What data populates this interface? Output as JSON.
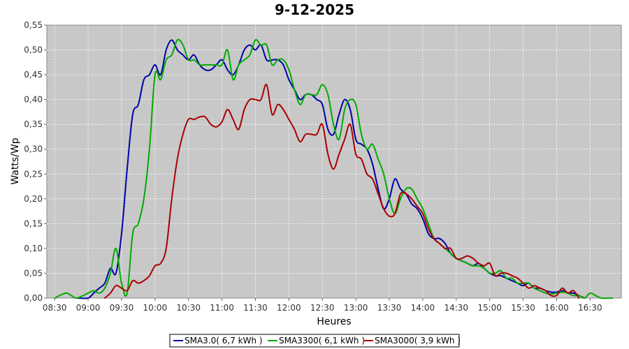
{
  "chart_data": {
    "type": "line",
    "title": "9-12-2025",
    "xlabel": "Heures",
    "ylabel": "Watts/Wp",
    "xlim": [
      "08:23",
      "16:58"
    ],
    "ylim": [
      0,
      0.55
    ],
    "x_ticks": [
      "08:30",
      "09:00",
      "09:30",
      "10:00",
      "10:30",
      "11:00",
      "11:30",
      "12:00",
      "12:30",
      "13:00",
      "13:30",
      "14:00",
      "14:30",
      "15:00",
      "15:30",
      "16:00",
      "16:30"
    ],
    "y_ticks": [
      "0,00",
      "0,05",
      "0,10",
      "0,15",
      "0,20",
      "0,25",
      "0,30",
      "0,35",
      "0,40",
      "0,45",
      "0,50",
      "0,55"
    ],
    "grid": true,
    "legend_position": "bottom",
    "series": [
      {
        "name": "SMA3.0( 6,7 kWh )",
        "color": "#0000aa",
        "points": [
          [
            "08:50",
            0.0
          ],
          [
            "09:00",
            0.0
          ],
          [
            "09:05",
            0.01
          ],
          [
            "09:10",
            0.02
          ],
          [
            "09:15",
            0.03
          ],
          [
            "09:20",
            0.06
          ],
          [
            "09:25",
            0.05
          ],
          [
            "09:30",
            0.13
          ],
          [
            "09:35",
            0.26
          ],
          [
            "09:40",
            0.37
          ],
          [
            "09:45",
            0.39
          ],
          [
            "09:50",
            0.44
          ],
          [
            "09:55",
            0.45
          ],
          [
            "10:00",
            0.47
          ],
          [
            "10:05",
            0.45
          ],
          [
            "10:10",
            0.5
          ],
          [
            "10:15",
            0.52
          ],
          [
            "10:20",
            0.5
          ],
          [
            "10:25",
            0.49
          ],
          [
            "10:30",
            0.48
          ],
          [
            "10:35",
            0.49
          ],
          [
            "10:40",
            0.47
          ],
          [
            "10:45",
            0.46
          ],
          [
            "10:50",
            0.46
          ],
          [
            "10:55",
            0.47
          ],
          [
            "11:00",
            0.48
          ],
          [
            "11:05",
            0.46
          ],
          [
            "11:10",
            0.45
          ],
          [
            "11:15",
            0.47
          ],
          [
            "11:20",
            0.5
          ],
          [
            "11:25",
            0.51
          ],
          [
            "11:30",
            0.5
          ],
          [
            "11:35",
            0.51
          ],
          [
            "11:40",
            0.48
          ],
          [
            "11:45",
            0.48
          ],
          [
            "11:50",
            0.48
          ],
          [
            "11:55",
            0.47
          ],
          [
            "12:00",
            0.44
          ],
          [
            "12:05",
            0.42
          ],
          [
            "12:10",
            0.4
          ],
          [
            "12:15",
            0.41
          ],
          [
            "12:20",
            0.41
          ],
          [
            "12:25",
            0.4
          ],
          [
            "12:30",
            0.39
          ],
          [
            "12:35",
            0.34
          ],
          [
            "12:40",
            0.33
          ],
          [
            "12:45",
            0.37
          ],
          [
            "12:50",
            0.4
          ],
          [
            "12:55",
            0.38
          ],
          [
            "13:00",
            0.32
          ],
          [
            "13:05",
            0.31
          ],
          [
            "13:10",
            0.3
          ],
          [
            "13:15",
            0.27
          ],
          [
            "13:20",
            0.22
          ],
          [
            "13:25",
            0.18
          ],
          [
            "13:30",
            0.2
          ],
          [
            "13:35",
            0.24
          ],
          [
            "13:40",
            0.22
          ],
          [
            "13:45",
            0.21
          ],
          [
            "13:50",
            0.19
          ],
          [
            "13:55",
            0.18
          ],
          [
            "14:00",
            0.16
          ],
          [
            "14:05",
            0.13
          ],
          [
            "14:10",
            0.12
          ],
          [
            "14:15",
            0.12
          ],
          [
            "14:20",
            0.11
          ],
          [
            "14:25",
            0.09
          ],
          [
            "14:30",
            0.08
          ],
          [
            "14:35",
            0.075
          ],
          [
            "14:40",
            0.07
          ],
          [
            "14:45",
            0.065
          ],
          [
            "14:50",
            0.07
          ],
          [
            "14:55",
            0.06
          ],
          [
            "15:00",
            0.05
          ],
          [
            "15:05",
            0.045
          ],
          [
            "15:10",
            0.045
          ],
          [
            "15:15",
            0.04
          ],
          [
            "15:20",
            0.035
          ],
          [
            "15:25",
            0.03
          ],
          [
            "15:30",
            0.025
          ],
          [
            "15:35",
            0.03
          ],
          [
            "15:40",
            0.02
          ],
          [
            "15:45",
            0.02
          ],
          [
            "15:50",
            0.015
          ],
          [
            "15:55",
            0.012
          ],
          [
            "16:00",
            0.012
          ],
          [
            "16:05",
            0.015
          ],
          [
            "16:10",
            0.01
          ],
          [
            "16:15",
            0.01
          ],
          [
            "16:20",
            0.005
          ],
          [
            "16:25",
            0.0
          ]
        ]
      },
      {
        "name": "SMA3300( 6,1 kWh )",
        "color": "#00aa00",
        "points": [
          [
            "08:30",
            0.0
          ],
          [
            "08:40",
            0.01
          ],
          [
            "08:45",
            0.005
          ],
          [
            "08:50",
            0.0
          ],
          [
            "09:00",
            0.01
          ],
          [
            "09:05",
            0.015
          ],
          [
            "09:10",
            0.01
          ],
          [
            "09:15",
            0.02
          ],
          [
            "09:20",
            0.05
          ],
          [
            "09:25",
            0.1
          ],
          [
            "09:30",
            0.03
          ],
          [
            "09:35",
            0.01
          ],
          [
            "09:40",
            0.13
          ],
          [
            "09:45",
            0.15
          ],
          [
            "09:50",
            0.2
          ],
          [
            "09:55",
            0.3
          ],
          [
            "10:00",
            0.45
          ],
          [
            "10:05",
            0.44
          ],
          [
            "10:10",
            0.48
          ],
          [
            "10:15",
            0.49
          ],
          [
            "10:20",
            0.52
          ],
          [
            "10:25",
            0.51
          ],
          [
            "10:30",
            0.48
          ],
          [
            "10:35",
            0.48
          ],
          [
            "10:40",
            0.47
          ],
          [
            "10:45",
            0.47
          ],
          [
            "10:50",
            0.47
          ],
          [
            "10:55",
            0.47
          ],
          [
            "11:00",
            0.47
          ],
          [
            "11:05",
            0.5
          ],
          [
            "11:10",
            0.44
          ],
          [
            "11:15",
            0.47
          ],
          [
            "11:20",
            0.48
          ],
          [
            "11:25",
            0.49
          ],
          [
            "11:30",
            0.52
          ],
          [
            "11:35",
            0.51
          ],
          [
            "11:40",
            0.51
          ],
          [
            "11:45",
            0.47
          ],
          [
            "11:50",
            0.48
          ],
          [
            "11:55",
            0.48
          ],
          [
            "12:00",
            0.46
          ],
          [
            "12:05",
            0.42
          ],
          [
            "12:10",
            0.39
          ],
          [
            "12:15",
            0.41
          ],
          [
            "12:20",
            0.41
          ],
          [
            "12:25",
            0.41
          ],
          [
            "12:30",
            0.43
          ],
          [
            "12:35",
            0.41
          ],
          [
            "12:40",
            0.35
          ],
          [
            "12:45",
            0.32
          ],
          [
            "12:50",
            0.38
          ],
          [
            "12:55",
            0.4
          ],
          [
            "13:00",
            0.39
          ],
          [
            "13:05",
            0.33
          ],
          [
            "13:10",
            0.3
          ],
          [
            "13:15",
            0.31
          ],
          [
            "13:20",
            0.28
          ],
          [
            "13:25",
            0.25
          ],
          [
            "13:30",
            0.2
          ],
          [
            "13:35",
            0.17
          ],
          [
            "13:40",
            0.2
          ],
          [
            "13:45",
            0.22
          ],
          [
            "13:50",
            0.22
          ],
          [
            "13:55",
            0.2
          ],
          [
            "14:00",
            0.18
          ],
          [
            "14:05",
            0.15
          ],
          [
            "14:10",
            0.12
          ],
          [
            "14:15",
            0.11
          ],
          [
            "14:20",
            0.1
          ],
          [
            "14:25",
            0.09
          ],
          [
            "14:30",
            0.08
          ],
          [
            "14:35",
            0.075
          ],
          [
            "14:40",
            0.07
          ],
          [
            "14:45",
            0.065
          ],
          [
            "14:50",
            0.065
          ],
          [
            "14:55",
            0.06
          ],
          [
            "15:00",
            0.05
          ],
          [
            "15:05",
            0.05
          ],
          [
            "15:10",
            0.055
          ],
          [
            "15:15",
            0.04
          ],
          [
            "15:20",
            0.04
          ],
          [
            "15:25",
            0.03
          ],
          [
            "15:30",
            0.03
          ],
          [
            "15:35",
            0.03
          ],
          [
            "15:40",
            0.02
          ],
          [
            "15:45",
            0.015
          ],
          [
            "15:50",
            0.01
          ],
          [
            "15:55",
            0.008
          ],
          [
            "16:00",
            0.01
          ],
          [
            "16:05",
            0.012
          ],
          [
            "16:10",
            0.01
          ],
          [
            "16:15",
            0.005
          ],
          [
            "16:20",
            0.005
          ],
          [
            "16:25",
            0.0
          ],
          [
            "16:30",
            0.01
          ],
          [
            "16:35",
            0.005
          ],
          [
            "16:40",
            0.0
          ],
          [
            "16:50",
            0.0
          ]
        ]
      },
      {
        "name": "SMA3000( 3,9 kWh )",
        "color": "#aa0000",
        "points": [
          [
            "09:15",
            0.0
          ],
          [
            "09:20",
            0.01
          ],
          [
            "09:25",
            0.025
          ],
          [
            "09:30",
            0.02
          ],
          [
            "09:35",
            0.015
          ],
          [
            "09:40",
            0.035
          ],
          [
            "09:45",
            0.03
          ],
          [
            "09:50",
            0.035
          ],
          [
            "09:55",
            0.045
          ],
          [
            "10:00",
            0.065
          ],
          [
            "10:05",
            0.07
          ],
          [
            "10:10",
            0.1
          ],
          [
            "10:15",
            0.2
          ],
          [
            "10:20",
            0.28
          ],
          [
            "10:25",
            0.33
          ],
          [
            "10:30",
            0.36
          ],
          [
            "10:35",
            0.36
          ],
          [
            "10:40",
            0.365
          ],
          [
            "10:45",
            0.365
          ],
          [
            "10:50",
            0.35
          ],
          [
            "10:55",
            0.345
          ],
          [
            "11:00",
            0.355
          ],
          [
            "11:05",
            0.38
          ],
          [
            "11:10",
            0.36
          ],
          [
            "11:15",
            0.34
          ],
          [
            "11:20",
            0.38
          ],
          [
            "11:25",
            0.4
          ],
          [
            "11:30",
            0.4
          ],
          [
            "11:35",
            0.4
          ],
          [
            "11:40",
            0.43
          ],
          [
            "11:45",
            0.37
          ],
          [
            "11:50",
            0.39
          ],
          [
            "11:55",
            0.38
          ],
          [
            "12:00",
            0.36
          ],
          [
            "12:05",
            0.34
          ],
          [
            "12:10",
            0.315
          ],
          [
            "12:15",
            0.33
          ],
          [
            "12:20",
            0.33
          ],
          [
            "12:25",
            0.33
          ],
          [
            "12:30",
            0.35
          ],
          [
            "12:35",
            0.29
          ],
          [
            "12:40",
            0.26
          ],
          [
            "12:45",
            0.29
          ],
          [
            "12:50",
            0.32
          ],
          [
            "12:55",
            0.35
          ],
          [
            "13:00",
            0.29
          ],
          [
            "13:05",
            0.28
          ],
          [
            "13:10",
            0.25
          ],
          [
            "13:15",
            0.24
          ],
          [
            "13:20",
            0.21
          ],
          [
            "13:25",
            0.18
          ],
          [
            "13:30",
            0.165
          ],
          [
            "13:35",
            0.17
          ],
          [
            "13:40",
            0.21
          ],
          [
            "13:45",
            0.21
          ],
          [
            "13:50",
            0.2
          ],
          [
            "13:55",
            0.185
          ],
          [
            "14:00",
            0.17
          ],
          [
            "14:05",
            0.14
          ],
          [
            "14:10",
            0.12
          ],
          [
            "14:15",
            0.11
          ],
          [
            "14:20",
            0.1
          ],
          [
            "14:25",
            0.1
          ],
          [
            "14:30",
            0.08
          ],
          [
            "14:35",
            0.08
          ],
          [
            "14:40",
            0.085
          ],
          [
            "14:45",
            0.08
          ],
          [
            "14:50",
            0.07
          ],
          [
            "14:55",
            0.065
          ],
          [
            "15:00",
            0.07
          ],
          [
            "15:05",
            0.045
          ],
          [
            "15:10",
            0.05
          ],
          [
            "15:15",
            0.05
          ],
          [
            "15:20",
            0.045
          ],
          [
            "15:25",
            0.04
          ],
          [
            "15:30",
            0.03
          ],
          [
            "15:35",
            0.02
          ],
          [
            "15:40",
            0.025
          ],
          [
            "15:45",
            0.02
          ],
          [
            "15:50",
            0.015
          ],
          [
            "15:55",
            0.005
          ],
          [
            "16:00",
            0.005
          ],
          [
            "16:05",
            0.02
          ],
          [
            "16:10",
            0.01
          ],
          [
            "16:15",
            0.015
          ],
          [
            "16:20",
            0.0
          ]
        ]
      }
    ]
  }
}
